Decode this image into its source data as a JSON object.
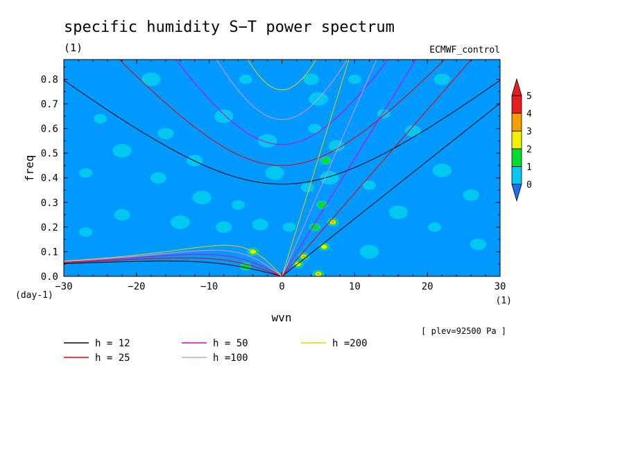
{
  "chart_data": {
    "type": "heatmap",
    "title": "specific humidity S−T power spectrum",
    "units_label": "(1)",
    "model_label": "ECMWF_control",
    "xlabel": "wvn",
    "ylabel": "freq",
    "y_units": "(day-1)",
    "x_units": "(1)",
    "footnote": "[ plev=92500 Pa ]",
    "xlim": [
      -30,
      30
    ],
    "ylim": [
      0.0,
      0.88
    ],
    "x_ticks": [
      -30,
      -20,
      -10,
      0,
      10,
      20,
      30
    ],
    "x_tick_labels": [
      "−30",
      "−20",
      "−10",
      "0",
      "10",
      "20",
      "30"
    ],
    "y_ticks": [
      0.0,
      0.1,
      0.2,
      0.3,
      0.4,
      0.5,
      0.6,
      0.7,
      0.8
    ],
    "y_tick_labels": [
      "0.0",
      "0.1",
      "0.2",
      "0.3",
      "0.4",
      "0.5",
      "0.6",
      "0.7",
      "0.8"
    ],
    "colorbar": {
      "levels": [
        "0",
        "1",
        "2",
        "3",
        "4",
        "5"
      ],
      "colors": [
        "#1e6ef0",
        "#00c8f0",
        "#00dc32",
        "#f0f000",
        "#f0a000",
        "#e61e1e"
      ],
      "background": "#0099ff"
    },
    "dispersion_curves": [
      {
        "h": 12,
        "label": "h = 12",
        "color": "#000000"
      },
      {
        "h": 25,
        "label": "h = 25",
        "color": "#e60000"
      },
      {
        "h": 50,
        "label": "h = 50",
        "color": "#dc00c8"
      },
      {
        "h": 100,
        "label": "h =100",
        "color": "#dc96e6"
      },
      {
        "h": 200,
        "label": "h =200",
        "color": "#e6d200"
      }
    ],
    "patches": [
      {
        "wvn": 7.0,
        "freq": 0.22,
        "level": 4
      },
      {
        "wvn": 5.8,
        "freq": 0.12,
        "level": 3
      },
      {
        "wvn": 3.0,
        "freq": 0.08,
        "level": 4
      },
      {
        "wvn": 2.2,
        "freq": 0.05,
        "level": 3
      },
      {
        "wvn": 5.0,
        "freq": 0.01,
        "level": 5
      },
      {
        "wvn": -4.0,
        "freq": 0.1,
        "level": 3
      },
      {
        "wvn": -5.0,
        "freq": 0.04,
        "level": 2
      },
      {
        "wvn": 6.0,
        "freq": 0.47,
        "level": 2
      },
      {
        "wvn": 5.5,
        "freq": 0.29,
        "level": 2
      },
      {
        "wvn": 4.5,
        "freq": 0.2,
        "level": 2
      },
      {
        "wvn": -3.0,
        "freq": 0.21,
        "level": 1
      },
      {
        "wvn": 5.0,
        "freq": 0.72,
        "level": 1
      },
      {
        "wvn": 4.5,
        "freq": 0.6,
        "level": 1
      },
      {
        "wvn": 4.0,
        "freq": 0.8,
        "level": 1
      },
      {
        "wvn": 6.5,
        "freq": 0.4,
        "level": 1
      },
      {
        "wvn": 3.5,
        "freq": 0.36,
        "level": 1
      },
      {
        "wvn": 7.5,
        "freq": 0.53,
        "level": 1
      },
      {
        "wvn": -18.0,
        "freq": 0.8,
        "level": 1
      },
      {
        "wvn": -25.0,
        "freq": 0.64,
        "level": 1
      },
      {
        "wvn": -16.0,
        "freq": 0.58,
        "level": 1
      },
      {
        "wvn": -8.0,
        "freq": 0.65,
        "level": 1
      },
      {
        "wvn": -5.0,
        "freq": 0.8,
        "level": 1
      },
      {
        "wvn": -12.0,
        "freq": 0.47,
        "level": 1
      },
      {
        "wvn": -22.0,
        "freq": 0.51,
        "level": 1
      },
      {
        "wvn": -27.0,
        "freq": 0.42,
        "level": 1
      },
      {
        "wvn": -17.0,
        "freq": 0.4,
        "level": 1
      },
      {
        "wvn": -11.0,
        "freq": 0.32,
        "level": 1
      },
      {
        "wvn": -6.0,
        "freq": 0.29,
        "level": 1
      },
      {
        "wvn": -22.0,
        "freq": 0.25,
        "level": 1
      },
      {
        "wvn": -14.0,
        "freq": 0.22,
        "level": 1
      },
      {
        "wvn": -27.0,
        "freq": 0.18,
        "level": 1
      },
      {
        "wvn": -8.0,
        "freq": 0.2,
        "level": 1
      },
      {
        "wvn": -2.0,
        "freq": 0.55,
        "level": 1
      },
      {
        "wvn": 14.0,
        "freq": 0.66,
        "level": 1
      },
      {
        "wvn": 18.0,
        "freq": 0.59,
        "level": 1
      },
      {
        "wvn": 22.0,
        "freq": 0.43,
        "level": 1
      },
      {
        "wvn": 12.0,
        "freq": 0.37,
        "level": 1
      },
      {
        "wvn": 26.0,
        "freq": 0.33,
        "level": 1
      },
      {
        "wvn": 16.0,
        "freq": 0.26,
        "level": 1
      },
      {
        "wvn": 21.0,
        "freq": 0.2,
        "level": 1
      },
      {
        "wvn": 27.0,
        "freq": 0.13,
        "level": 1
      },
      {
        "wvn": 12.0,
        "freq": 0.1,
        "level": 1
      },
      {
        "wvn": 10.0,
        "freq": 0.8,
        "level": 1
      },
      {
        "wvn": 22.0,
        "freq": 0.8,
        "level": 1
      },
      {
        "wvn": -1.0,
        "freq": 0.42,
        "level": 1
      },
      {
        "wvn": 1.0,
        "freq": 0.2,
        "level": 1
      }
    ]
  }
}
